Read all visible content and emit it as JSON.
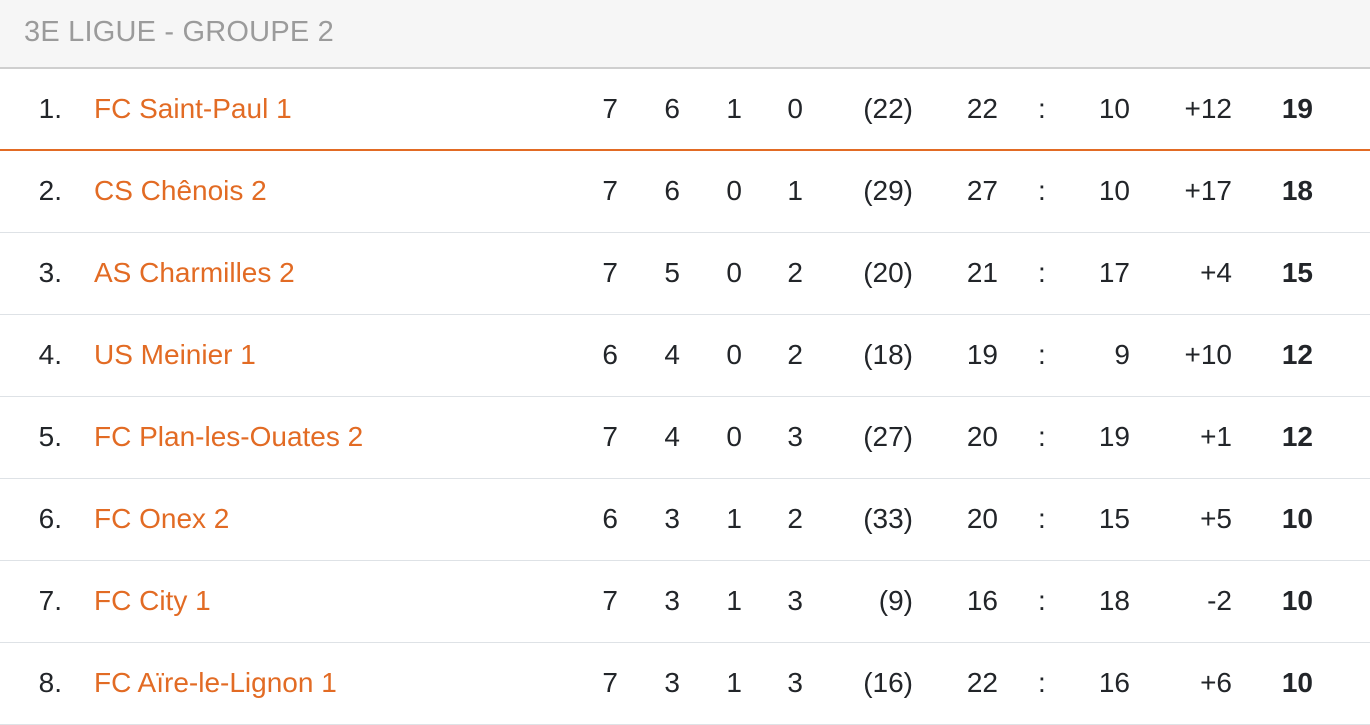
{
  "title": "3E LIGUE - GROUPE 2",
  "accent_color": "#e26b24",
  "separator": ":",
  "rows": [
    {
      "rank": "1.",
      "team": "FC Saint-Paul 1",
      "played": "7",
      "won": "6",
      "drawn": "1",
      "lost": "0",
      "extra": "(22)",
      "gf": "22",
      "ga": "10",
      "gd": "+12",
      "pts": "19"
    },
    {
      "rank": "2.",
      "team": "CS Chênois 2",
      "played": "7",
      "won": "6",
      "drawn": "0",
      "lost": "1",
      "extra": "(29)",
      "gf": "27",
      "ga": "10",
      "gd": "+17",
      "pts": "18"
    },
    {
      "rank": "3.",
      "team": "AS Charmilles 2",
      "played": "7",
      "won": "5",
      "drawn": "0",
      "lost": "2",
      "extra": "(20)",
      "gf": "21",
      "ga": "17",
      "gd": "+4",
      "pts": "15"
    },
    {
      "rank": "4.",
      "team": "US Meinier 1",
      "played": "6",
      "won": "4",
      "drawn": "0",
      "lost": "2",
      "extra": "(18)",
      "gf": "19",
      "ga": "9",
      "gd": "+10",
      "pts": "12"
    },
    {
      "rank": "5.",
      "team": "FC Plan-les-Ouates 2",
      "played": "7",
      "won": "4",
      "drawn": "0",
      "lost": "3",
      "extra": "(27)",
      "gf": "20",
      "ga": "19",
      "gd": "+1",
      "pts": "12"
    },
    {
      "rank": "6.",
      "team": "FC Onex 2",
      "played": "6",
      "won": "3",
      "drawn": "1",
      "lost": "2",
      "extra": "(33)",
      "gf": "20",
      "ga": "15",
      "gd": "+5",
      "pts": "10"
    },
    {
      "rank": "7.",
      "team": "FC City 1",
      "played": "7",
      "won": "3",
      "drawn": "1",
      "lost": "3",
      "extra": "(9)",
      "gf": "16",
      "ga": "18",
      "gd": "-2",
      "pts": "10"
    },
    {
      "rank": "8.",
      "team": "FC Aïre-le-Lignon 1",
      "played": "7",
      "won": "3",
      "drawn": "1",
      "lost": "3",
      "extra": "(16)",
      "gf": "22",
      "ga": "16",
      "gd": "+6",
      "pts": "10"
    }
  ]
}
